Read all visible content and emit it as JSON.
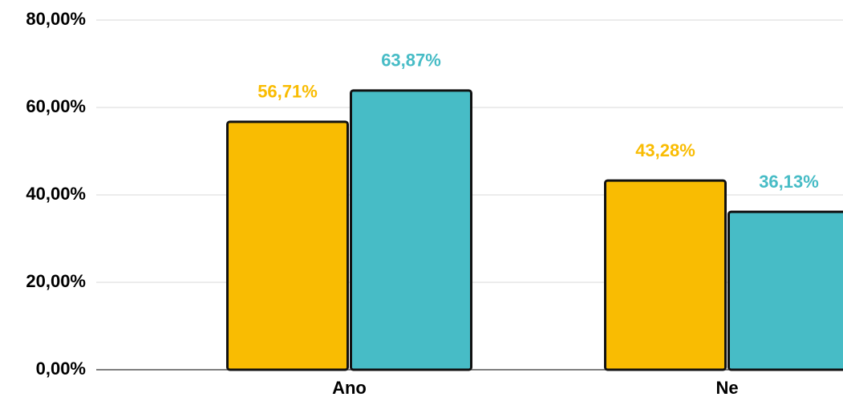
{
  "chart_data": {
    "type": "bar",
    "categories": [
      "Ano",
      "Ne"
    ],
    "series": [
      {
        "color": "#f9bc02",
        "values": [
          56.71,
          43.28
        ],
        "value_labels": [
          "56,71%",
          "43,28%"
        ]
      },
      {
        "color": "#47bcc6",
        "values": [
          63.87,
          36.13
        ],
        "value_labels": [
          "63,87%",
          "36,13%"
        ]
      }
    ],
    "ylim": [
      0,
      80
    ],
    "yticks": [
      {
        "value": 0,
        "label": "0,00%"
      },
      {
        "value": 20,
        "label": "20,00%"
      },
      {
        "value": 40,
        "label": "40,00%"
      },
      {
        "value": 60,
        "label": "60,00%"
      },
      {
        "value": 80,
        "label": "80,00%"
      }
    ],
    "grid": true
  }
}
